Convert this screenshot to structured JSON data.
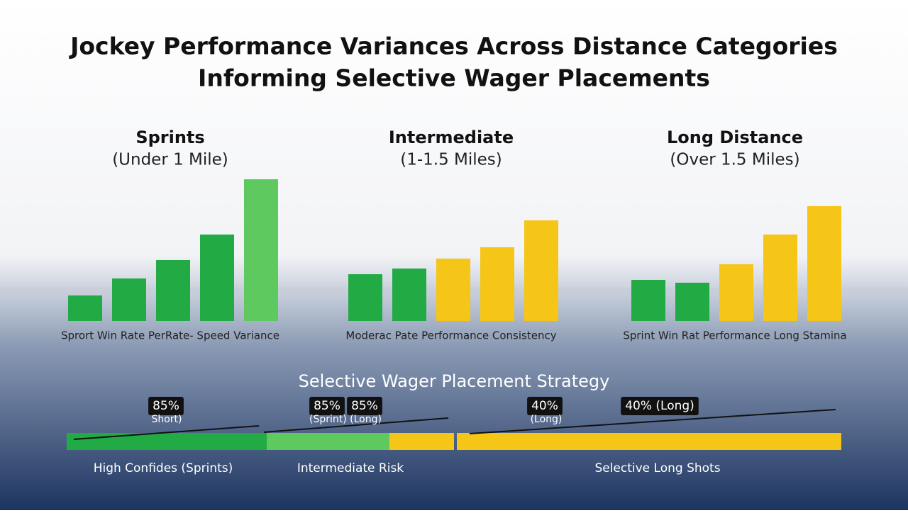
{
  "title_line1": "Jockey Performance Variances Across Distance Categories",
  "title_line2": "Informing Selective Wager Placements",
  "chart_data": [
    {
      "type": "bar",
      "title": "Sprints",
      "subtitle": "(Under 1 Mile)",
      "caption": "Sprort Win Rate PerRate- Speed Variance",
      "categories": [
        null,
        null,
        null,
        null,
        null
      ],
      "values": [
        18,
        30,
        43,
        61,
        100
      ],
      "colors": [
        "#22aa44",
        "#22aa44",
        "#22aa44",
        "#22aa44",
        "#5ec95e"
      ]
    },
    {
      "type": "bar",
      "title": "Intermediate",
      "subtitle": "(1-1.5 Miles)",
      "caption": "Moderac Pate Performance Consistency",
      "categories": [
        null,
        null,
        null,
        null,
        null
      ],
      "values": [
        33,
        37,
        44,
        52,
        71
      ],
      "colors": [
        "#22aa44",
        "#22aa44",
        "#f5c518",
        "#f5c518",
        "#f5c518"
      ]
    },
    {
      "type": "bar",
      "title": "Long Distance",
      "subtitle": "(Over 1.5 Miles)",
      "caption": "Sprint Win Rat Performance Long Stamina",
      "categories": [
        null,
        null,
        null,
        null,
        null
      ],
      "values": [
        29,
        27,
        40,
        61,
        81
      ],
      "colors": [
        "#22aa44",
        "#22aa44",
        "#f5c518",
        "#f5c518",
        "#f5c518"
      ]
    }
  ],
  "strategy": {
    "title": "Selective Wager Placement Strategy",
    "labels": [
      "85%",
      "Short)",
      "85%",
      "85%",
      "(Sprint) (Long)",
      "40%",
      "(Long)",
      "40% (Long)"
    ],
    "zones": [
      "High Confides (Sprints)",
      "Intermediate Risk",
      "Selective Long Shots"
    ]
  }
}
